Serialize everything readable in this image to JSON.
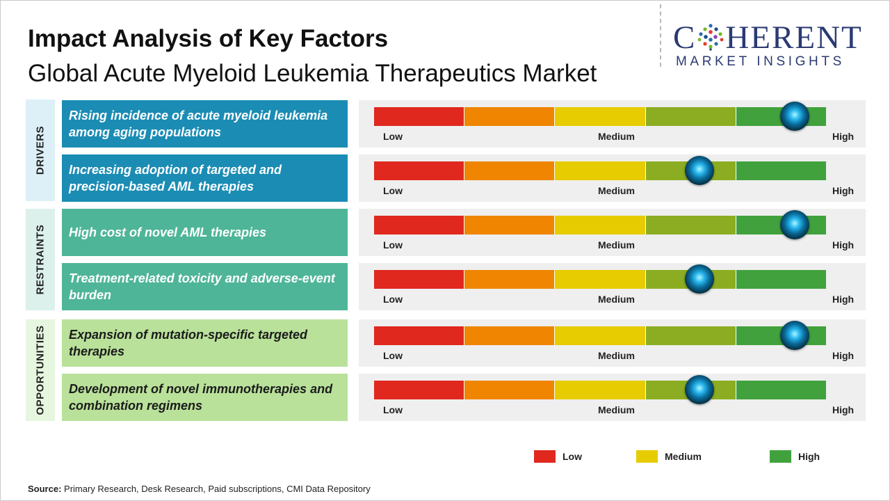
{
  "header": {
    "title": "Impact Analysis of Key Factors",
    "subtitle": "Global Acute Myeloid Leukemia Therapeutics Market"
  },
  "logo": {
    "word_before": "C",
    "word_after": "HERENT",
    "tagline": "MARKET INSIGHTS"
  },
  "colors": {
    "scale": [
      "#e0281f",
      "#ef8500",
      "#e6cc00",
      "#8cad22",
      "#41a23d"
    ],
    "drivers_band": "#ddf0f8",
    "drivers_box": "#1b8cb4",
    "restraints_band": "#dcf1ec",
    "restraints_box": "#4fb598",
    "opportunities_band": "#e6f6df",
    "opportunities_box": "#b9e19a"
  },
  "chart_data": {
    "type": "gauge",
    "scale_labels": {
      "low": "Low",
      "medium": "Medium",
      "high": "High"
    },
    "categories": [
      {
        "label": "DRIVERS",
        "factors": [
          {
            "text": "Rising incidence of acute myeloid leukemia among aging populations",
            "impact": 0.93
          },
          {
            "text": "Increasing adoption of targeted and precision-based AML therapies",
            "impact": 0.72
          }
        ]
      },
      {
        "label": "RESTRAINTS",
        "factors": [
          {
            "text": "High cost of novel AML therapies",
            "impact": 0.93
          },
          {
            "text": "Treatment-related toxicity and adverse-event burden",
            "impact": 0.72
          }
        ]
      },
      {
        "label": "OPPORTUNITIES",
        "factors": [
          {
            "text": "Expansion of mutation-specific targeted therapies",
            "impact": 0.93
          },
          {
            "text": "Development of novel immunotherapies and combination regimens",
            "impact": 0.72
          }
        ]
      }
    ],
    "legend": [
      {
        "label": "Low",
        "color": "#e0281f"
      },
      {
        "label": "Medium",
        "color": "#e6cc00"
      },
      {
        "label": "High",
        "color": "#41a23d"
      }
    ]
  },
  "footer": {
    "source_label": "Source:",
    "source_text": " Primary Research, Desk Research, Paid subscriptions, CMI Data Repository"
  }
}
